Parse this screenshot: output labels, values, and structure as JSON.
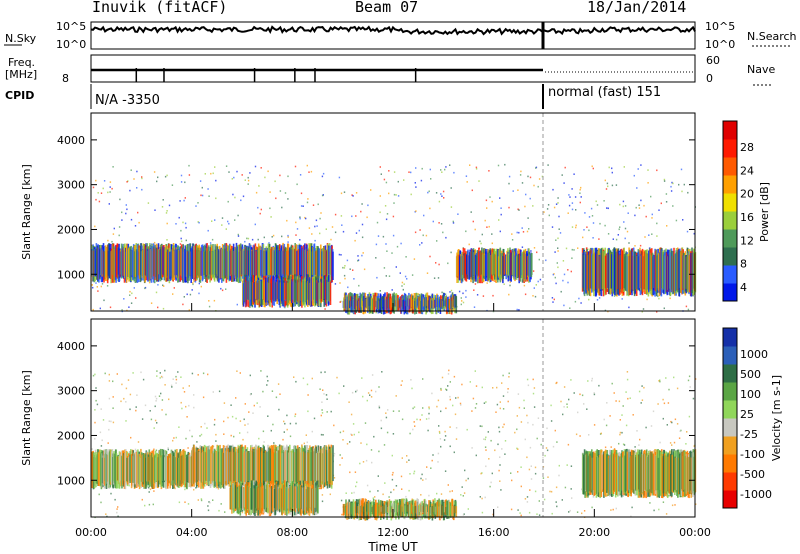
{
  "header": {
    "station": "Inuvik (fitACF)",
    "beam": "Beam 07",
    "date": "18/Jan/2014"
  },
  "strips": {
    "nsky_label": "N.Sky",
    "nsearch_label": "N.Search",
    "noise_ticks_left": [
      "10^5",
      "10^0"
    ],
    "noise_ticks_right": [
      "10^5",
      "10^0"
    ],
    "freq_label": "Freq.",
    "freq_unit": "[MHz]",
    "freq_tick": "8",
    "nave_label": "Nave",
    "nave_ticks": [
      "60",
      "0"
    ],
    "cpid_label": "CPID",
    "cpid_mode_1": "N/A -3350",
    "cpid_mode_2": "normal (fast) 151"
  },
  "colors": {
    "power_scale": [
      "#0018e8",
      "#2a5cff",
      "#2f6f4f",
      "#4f9a5a",
      "#9bcf3c",
      "#f0e000",
      "#ffa000",
      "#ff5a00",
      "#ff1a00",
      "#e00000"
    ],
    "velocity_scale": [
      "#1530a8",
      "#2b5fb8",
      "#2e6e45",
      "#5aa544",
      "#90d65a",
      "#c8c8c0",
      "#f0a020",
      "#ff7a00",
      "#ff3a00",
      "#e80000"
    ]
  },
  "chart_data": [
    {
      "type": "heatmap",
      "name": "power",
      "ylabel": "Slant Range [km]",
      "xlabel": "",
      "colorbar_label": "Power [dB]",
      "colorbar_ticks": [
        "28",
        "24",
        "20",
        "16",
        "12",
        "8",
        "4"
      ],
      "xlim_hours": [
        0,
        24
      ],
      "ylim": [
        180,
        4600
      ],
      "yticks": [
        1000,
        2000,
        3000,
        4000
      ],
      "xticks": [
        "00:00",
        "04:00",
        "08:00",
        "12:00",
        "16:00",
        "20:00",
        "00:00"
      ],
      "bands": [
        {
          "t0": 0.0,
          "t1": 9.6,
          "r0": 900,
          "r1": 1600,
          "level": "medium"
        },
        {
          "t0": 6.0,
          "t1": 9.5,
          "r0": 350,
          "r1": 900,
          "level": "medium"
        },
        {
          "t0": 10.0,
          "t1": 14.5,
          "r0": 200,
          "r1": 500,
          "level": "high"
        },
        {
          "t0": 14.5,
          "t1": 17.5,
          "r0": 900,
          "r1": 1500,
          "level": "low"
        },
        {
          "t0": 19.5,
          "t1": 24.0,
          "r0": 600,
          "r1": 1500,
          "level": "high"
        }
      ]
    },
    {
      "type": "heatmap",
      "name": "velocity",
      "ylabel": "Slant Range [km]",
      "xlabel": "Time UT",
      "colorbar_label": "Velocity [m s-1]",
      "colorbar_ticks": [
        "1000",
        "500",
        "100",
        "25",
        "-25",
        "-100",
        "-500",
        "-1000"
      ],
      "xlim_hours": [
        0,
        24
      ],
      "ylim": [
        180,
        4600
      ],
      "yticks": [
        1000,
        2000,
        3000,
        4000
      ],
      "xticks": [
        "00:00",
        "04:00",
        "08:00",
        "12:00",
        "16:00",
        "20:00",
        "00:00"
      ],
      "bands": [
        {
          "t0": 0.0,
          "t1": 4.0,
          "r0": 900,
          "r1": 1600,
          "level": "away"
        },
        {
          "t0": 4.0,
          "t1": 9.6,
          "r0": 900,
          "r1": 1700,
          "level": "toward"
        },
        {
          "t0": 5.5,
          "t1": 9.0,
          "r0": 300,
          "r1": 900,
          "level": "gray"
        },
        {
          "t0": 10.0,
          "t1": 14.5,
          "r0": 200,
          "r1": 500,
          "level": "away"
        },
        {
          "t0": 19.5,
          "t1": 24.0,
          "r0": 700,
          "r1": 1600,
          "level": "gray"
        }
      ]
    }
  ]
}
